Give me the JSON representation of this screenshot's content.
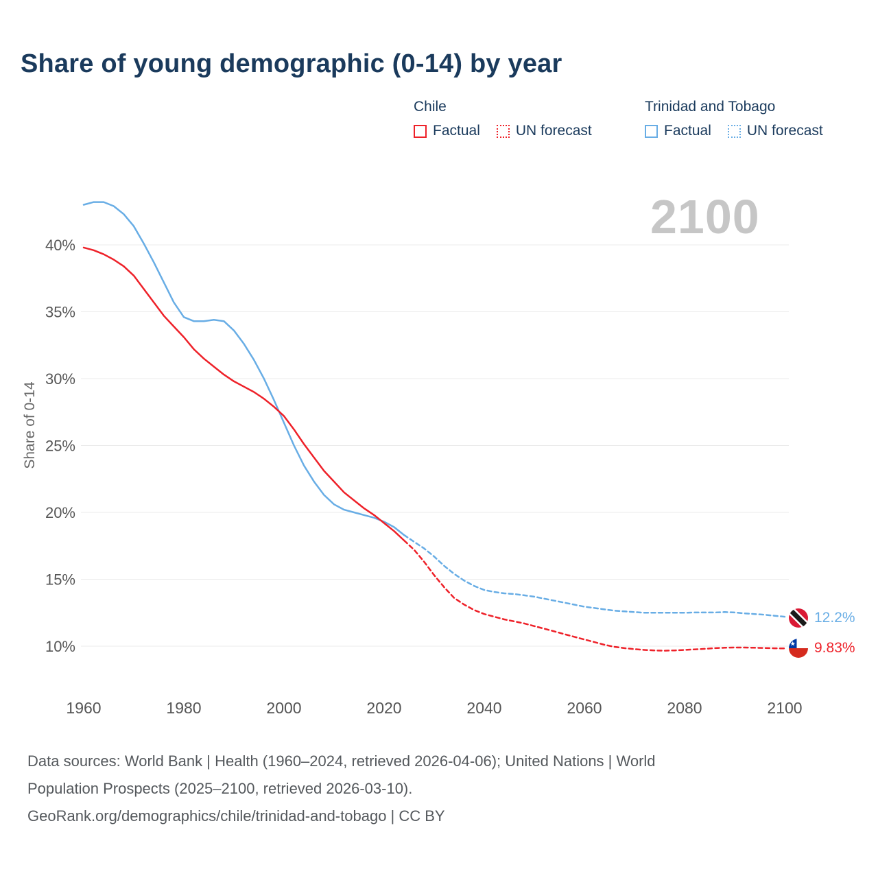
{
  "title": "Share of young demographic (0-14) by year",
  "watermark": "2100",
  "y_axis_title": "Share of 0-14",
  "legend": {
    "chile": {
      "name": "Chile",
      "factual_label": "Factual",
      "forecast_label": "UN forecast"
    },
    "trinidad": {
      "name": "Trinidad and Tobago",
      "factual_label": "Factual",
      "forecast_label": "UN forecast"
    }
  },
  "colors": {
    "chile": "#ee2129",
    "trinidad": "#68ade5",
    "title": "#1a3a5c",
    "axis_text": "#555555",
    "grid": "#ebebeb",
    "watermark": "#c6c6c6"
  },
  "end_labels": {
    "trinidad": {
      "country": "Trinidad and Tobago",
      "value": "12.2%"
    },
    "chile": {
      "country": "Chile",
      "value": "9.83%"
    }
  },
  "footer": {
    "line1": "Data sources: World Bank | Health (1960–2024, retrieved 2026-04-06); United Nations | World",
    "line2": "Population Prospects (2025–2100, retrieved 2026-03-10).",
    "line3": "GeoRank.org/demographics/chile/trinidad-and-tobago | CC BY"
  },
  "chart_data": {
    "type": "line",
    "title": "Share of young demographic (0-14) by year",
    "xlabel": "",
    "ylabel": "Share of 0-14",
    "forecast_start_year": 2024,
    "x_axis": {
      "ticks": [
        1960,
        1980,
        2000,
        2020,
        2040,
        2060,
        2080,
        2100
      ],
      "range": [
        1960,
        2100
      ]
    },
    "y_axis": {
      "ticks": [
        10,
        15,
        20,
        25,
        30,
        35,
        40
      ],
      "range": [
        8.5,
        44.5
      ],
      "format": "percent"
    },
    "grid": "horizontal",
    "legend_position": "top-right",
    "series": [
      {
        "id": "chile",
        "name": "Chile",
        "color": "#ee2129",
        "factual": {
          "x": [
            1960,
            1962,
            1964,
            1966,
            1968,
            1970,
            1972,
            1974,
            1976,
            1978,
            1980,
            1982,
            1984,
            1986,
            1988,
            1990,
            1992,
            1994,
            1996,
            1998,
            2000,
            2002,
            2004,
            2006,
            2008,
            2010,
            2012,
            2014,
            2016,
            2018,
            2020,
            2022,
            2024
          ],
          "y": [
            39.8,
            39.6,
            39.3,
            38.9,
            38.4,
            37.7,
            36.7,
            35.7,
            34.7,
            33.9,
            33.1,
            32.2,
            31.5,
            30.9,
            30.3,
            29.8,
            29.4,
            29.0,
            28.5,
            27.9,
            27.2,
            26.2,
            25.1,
            24.1,
            23.1,
            22.3,
            21.5,
            20.9,
            20.3,
            19.8,
            19.2,
            18.6,
            17.9
          ]
        },
        "forecast": {
          "x": [
            2024,
            2026,
            2028,
            2030,
            2032,
            2034,
            2036,
            2038,
            2040,
            2042,
            2044,
            2046,
            2048,
            2050,
            2052,
            2054,
            2056,
            2058,
            2060,
            2062,
            2064,
            2066,
            2068,
            2070,
            2072,
            2074,
            2076,
            2078,
            2080,
            2082,
            2084,
            2086,
            2088,
            2090,
            2092,
            2094,
            2096,
            2098,
            2100
          ],
          "y": [
            17.9,
            17.2,
            16.3,
            15.3,
            14.4,
            13.6,
            13.1,
            12.7,
            12.4,
            12.2,
            12.0,
            11.85,
            11.7,
            11.5,
            11.3,
            11.1,
            10.9,
            10.7,
            10.5,
            10.3,
            10.1,
            9.95,
            9.85,
            9.78,
            9.72,
            9.68,
            9.66,
            9.68,
            9.72,
            9.76,
            9.8,
            9.85,
            9.88,
            9.9,
            9.9,
            9.88,
            9.86,
            9.84,
            9.83
          ]
        }
      },
      {
        "id": "trinidad",
        "name": "Trinidad and Tobago",
        "color": "#68ade5",
        "factual": {
          "x": [
            1960,
            1962,
            1964,
            1966,
            1968,
            1970,
            1972,
            1974,
            1976,
            1978,
            1980,
            1982,
            1984,
            1986,
            1988,
            1990,
            1992,
            1994,
            1996,
            1998,
            2000,
            2002,
            2004,
            2006,
            2008,
            2010,
            2012,
            2014,
            2016,
            2018,
            2020,
            2022,
            2024
          ],
          "y": [
            43.0,
            43.2,
            43.2,
            42.9,
            42.3,
            41.4,
            40.1,
            38.7,
            37.2,
            35.7,
            34.6,
            34.3,
            34.3,
            34.4,
            34.3,
            33.6,
            32.6,
            31.4,
            30.0,
            28.4,
            26.7,
            25.0,
            23.5,
            22.3,
            21.3,
            20.6,
            20.2,
            20.0,
            19.8,
            19.6,
            19.3,
            18.9,
            18.3
          ]
        },
        "forecast": {
          "x": [
            2024,
            2026,
            2028,
            2030,
            2032,
            2034,
            2036,
            2038,
            2040,
            2042,
            2044,
            2046,
            2048,
            2050,
            2052,
            2054,
            2056,
            2058,
            2060,
            2062,
            2064,
            2066,
            2068,
            2070,
            2072,
            2074,
            2076,
            2078,
            2080,
            2082,
            2084,
            2086,
            2088,
            2090,
            2092,
            2094,
            2096,
            2098,
            2100
          ],
          "y": [
            18.3,
            17.8,
            17.3,
            16.7,
            16.0,
            15.4,
            14.9,
            14.5,
            14.2,
            14.05,
            13.95,
            13.9,
            13.8,
            13.7,
            13.55,
            13.4,
            13.25,
            13.1,
            12.95,
            12.85,
            12.75,
            12.65,
            12.6,
            12.55,
            12.5,
            12.5,
            12.5,
            12.5,
            12.5,
            12.52,
            12.52,
            12.52,
            12.55,
            12.52,
            12.45,
            12.4,
            12.35,
            12.27,
            12.2
          ]
        }
      }
    ]
  }
}
